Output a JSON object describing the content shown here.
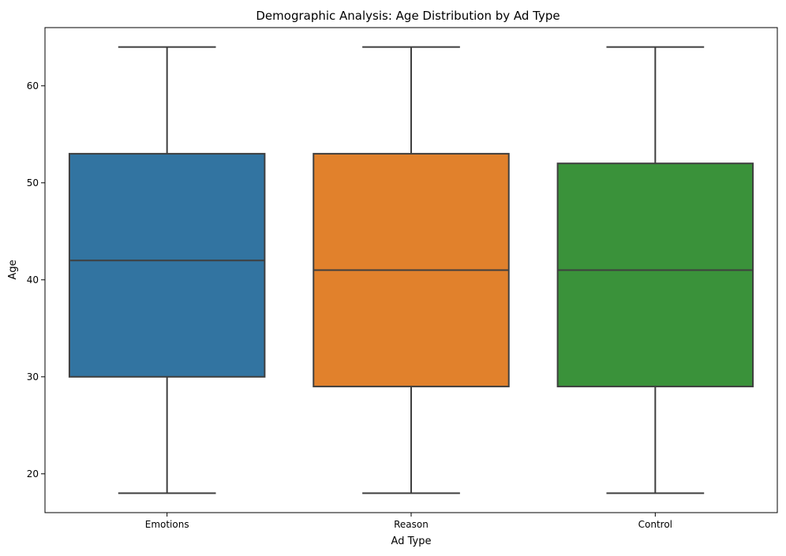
{
  "chart_data": {
    "type": "box",
    "title": "Demographic Analysis: Age Distribution by Ad Type",
    "xlabel": "Ad Type",
    "ylabel": "Age",
    "ylim": [
      16,
      66
    ],
    "yticks": [
      20,
      30,
      40,
      50,
      60
    ],
    "grid": false,
    "categories": [
      "Emotions",
      "Reason",
      "Control"
    ],
    "boxes": [
      {
        "category": "Emotions",
        "min": 18,
        "q1": 30,
        "median": 42,
        "q3": 53,
        "max": 64,
        "color": "#3274a1"
      },
      {
        "category": "Reason",
        "min": 18,
        "q1": 29,
        "median": 41,
        "q3": 53,
        "max": 64,
        "color": "#e1812c"
      },
      {
        "category": "Control",
        "min": 18,
        "q1": 29,
        "median": 41,
        "q3": 52,
        "max": 64,
        "color": "#3a923a"
      }
    ],
    "line_color": "#3f3f3f"
  }
}
